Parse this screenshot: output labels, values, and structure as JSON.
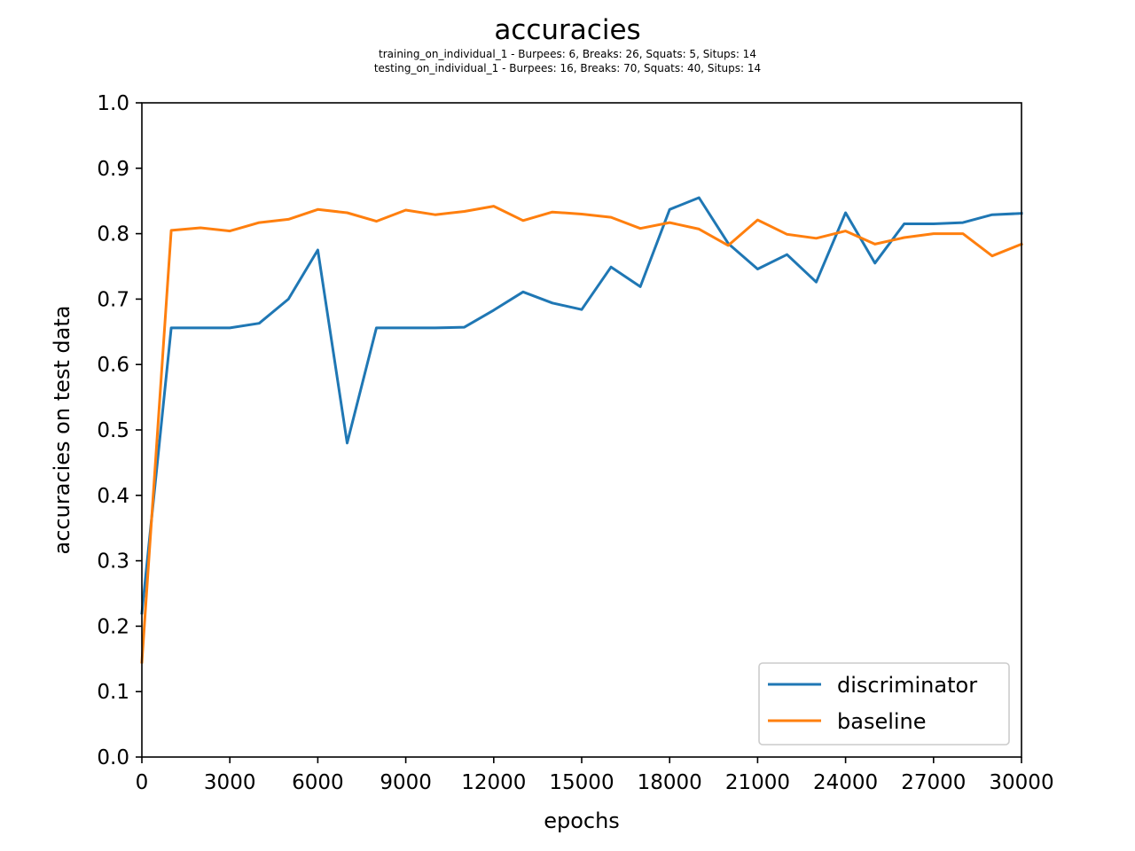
{
  "chart_data": {
    "type": "line",
    "title": "accuracies",
    "subtitle": [
      "training_on_individual_1 - Burpees: 6, Breaks: 26, Squats: 5, Situps: 14",
      "testing_on_individual_1 - Burpees: 16, Breaks: 70, Squats: 40, Situps: 14"
    ],
    "xlabel": "epochs",
    "ylabel": "accuracies on test data",
    "xlim": [
      0,
      30000
    ],
    "ylim": [
      0.0,
      1.0
    ],
    "xticks": [
      "0",
      "3000",
      "6000",
      "9000",
      "12000",
      "15000",
      "18000",
      "21000",
      "24000",
      "27000",
      "30000"
    ],
    "yticks": [
      "0.0",
      "0.1",
      "0.2",
      "0.3",
      "0.4",
      "0.5",
      "0.6",
      "0.7",
      "0.8",
      "0.9",
      "1.0"
    ],
    "grid": false,
    "legend_position": "lower-right",
    "x": [
      0,
      1000,
      2000,
      3000,
      4000,
      5000,
      6000,
      7000,
      8000,
      9000,
      10000,
      11000,
      12000,
      13000,
      14000,
      15000,
      16000,
      17000,
      18000,
      19000,
      20000,
      21000,
      22000,
      23000,
      24000,
      25000,
      26000,
      27000,
      28000,
      29000,
      30000
    ],
    "series": [
      {
        "name": "discriminator",
        "color": "#1f77b4",
        "values": [
          0.22,
          0.656,
          0.656,
          0.656,
          0.663,
          0.7,
          0.775,
          0.48,
          0.656,
          0.656,
          0.656,
          0.657,
          0.683,
          0.711,
          0.694,
          0.684,
          0.749,
          0.719,
          0.837,
          0.855,
          0.785,
          0.746,
          0.768,
          0.726,
          0.832,
          0.755,
          0.815,
          0.815,
          0.817,
          0.829,
          0.831
        ]
      },
      {
        "name": "baseline",
        "color": "#ff7f0e",
        "values": [
          0.145,
          0.805,
          0.809,
          0.804,
          0.817,
          0.822,
          0.837,
          0.832,
          0.819,
          0.836,
          0.829,
          0.834,
          0.842,
          0.82,
          0.833,
          0.83,
          0.825,
          0.808,
          0.817,
          0.807,
          0.782,
          0.821,
          0.799,
          0.793,
          0.804,
          0.784,
          0.794,
          0.8,
          0.8,
          0.766,
          0.784
        ]
      }
    ]
  }
}
